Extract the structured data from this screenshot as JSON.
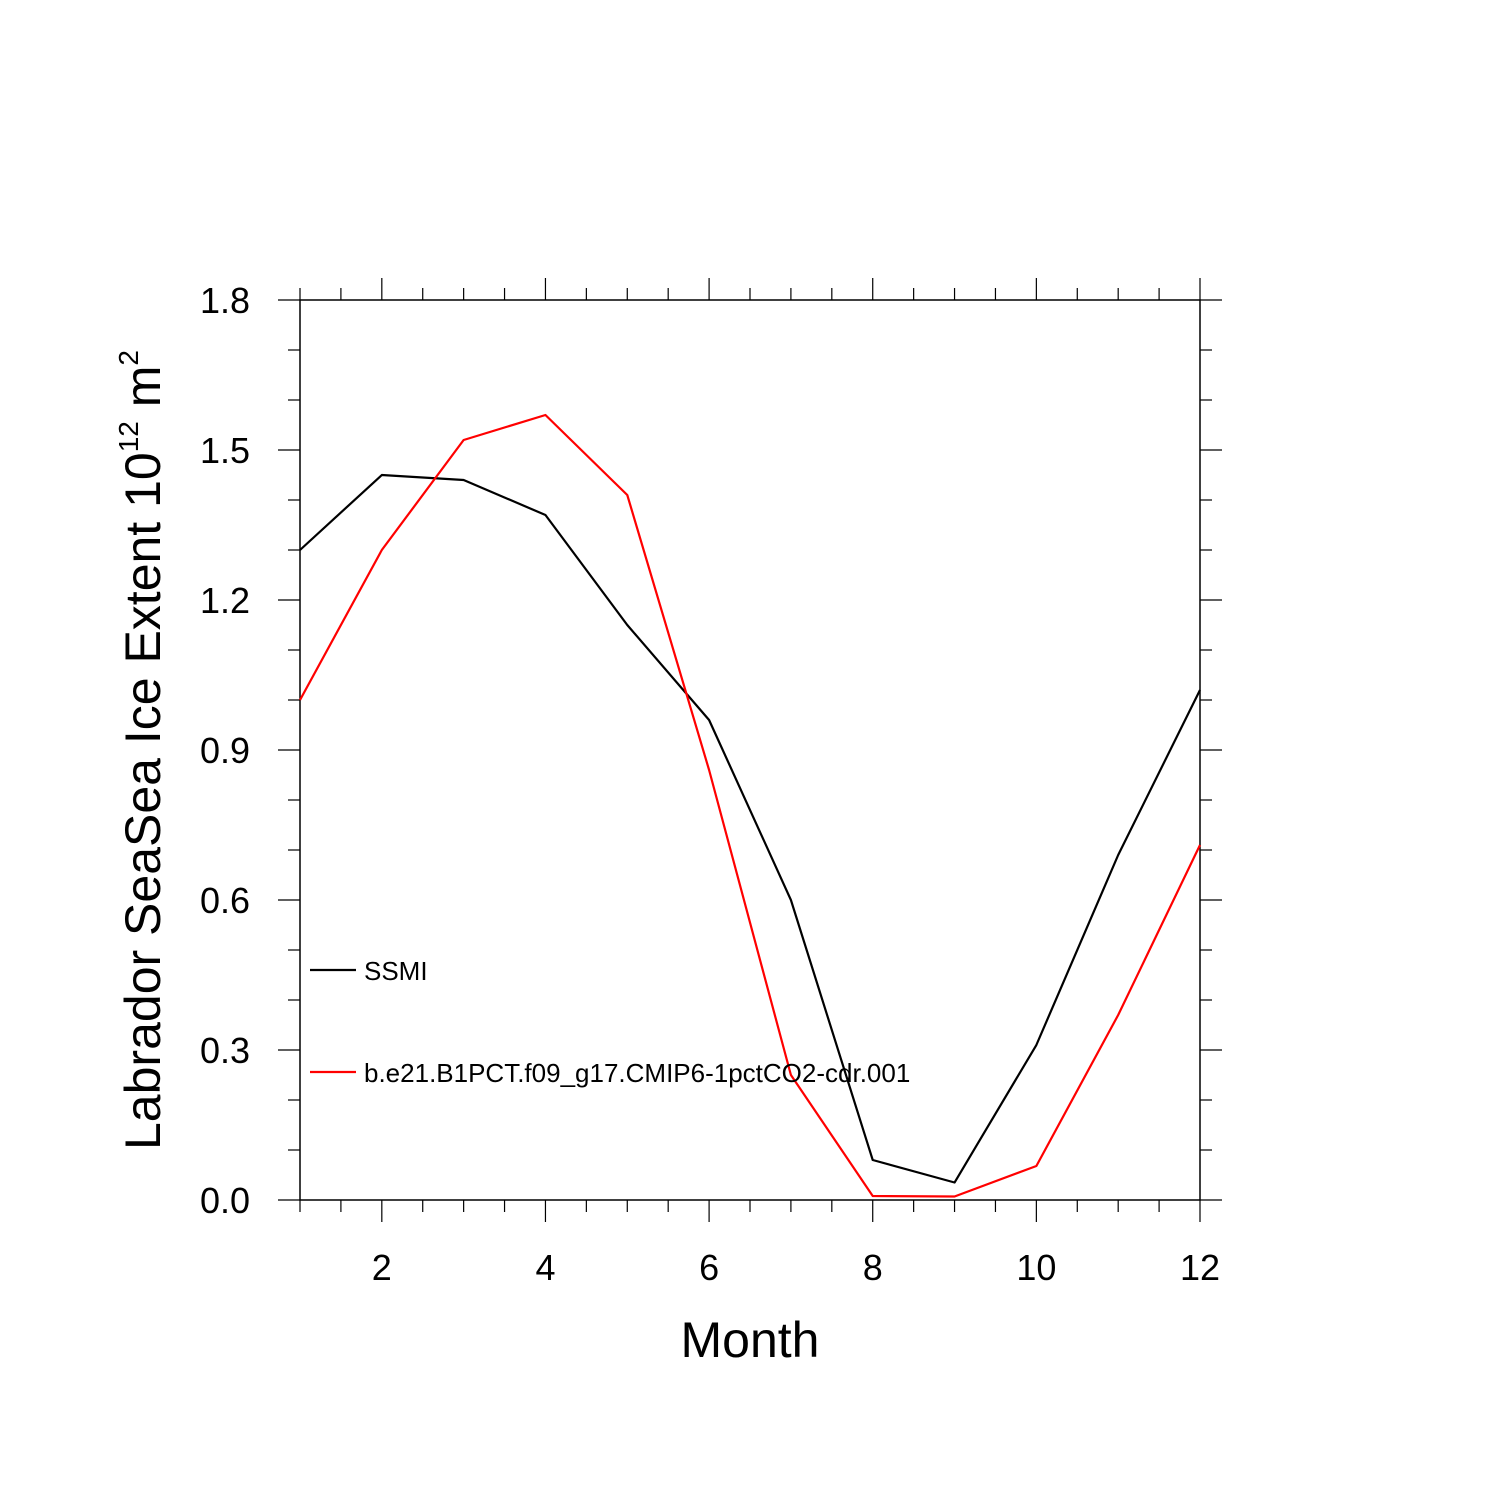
{
  "chart_data": {
    "type": "line",
    "xlabel": "Month",
    "ylabel": {
      "base": "Labrador SeaSea Ice Extent 10",
      "exponent": "12",
      "unit": " m",
      "unit_exponent": "2"
    },
    "xlim": [
      1,
      12
    ],
    "ylim": [
      0,
      1.8
    ],
    "x_major_ticks": [
      2,
      4,
      6,
      8,
      10,
      12
    ],
    "x_tick_labels": [
      "2",
      "4",
      "6",
      "8",
      "10",
      "12"
    ],
    "x_minor_step": 0.5,
    "y_major_ticks": [
      0,
      0.3,
      0.6,
      0.9,
      1.2,
      1.5,
      1.8
    ],
    "y_tick_labels": [
      "0.0",
      "0.3",
      "0.6",
      "0.9",
      "1.2",
      "1.5",
      "1.8"
    ],
    "y_minor_step": 0.1,
    "grid": false,
    "legend_position": "left",
    "x": [
      1,
      2,
      3,
      4,
      5,
      6,
      7,
      8,
      9,
      10,
      11,
      12
    ],
    "series": [
      {
        "name": "SSMI",
        "color": "#000000",
        "values": [
          1.3,
          1.45,
          1.44,
          1.37,
          1.15,
          0.96,
          0.6,
          0.08,
          0.035,
          0.31,
          0.69,
          1.02
        ]
      },
      {
        "name": "b.e21.B1PCT.f09_g17.CMIP6-1pctCO2-cdr.001",
        "color": "#ff0000",
        "values": [
          1.0,
          1.3,
          1.52,
          1.57,
          1.41,
          0.86,
          0.25,
          0.008,
          0.007,
          0.068,
          0.37,
          0.71
        ]
      }
    ]
  }
}
